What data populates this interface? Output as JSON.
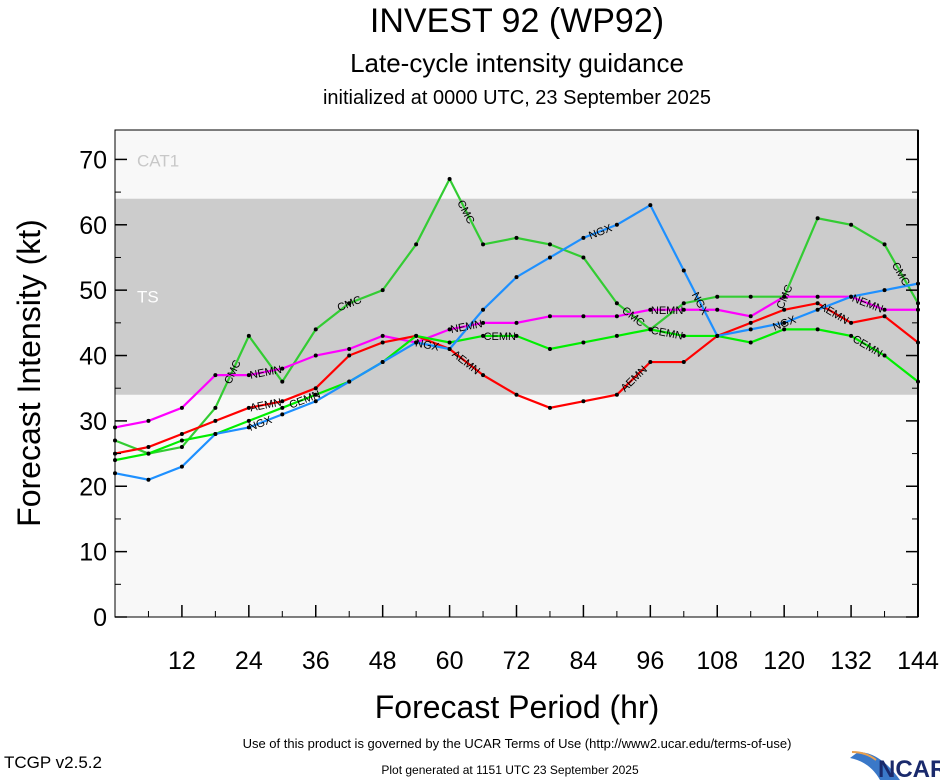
{
  "chart_data": {
    "type": "line",
    "title": "INVEST 92 (WP92)",
    "subtitle": "Late-cycle intensity guidance",
    "subtitle2": "initialized at 0000 UTC, 23 September 2025",
    "xlabel": "Forecast Period (hr)",
    "ylabel": "Forecast Intensity (kt)",
    "xlim": [
      0,
      144
    ],
    "ylim": [
      0,
      74.5
    ],
    "xticks": [
      12,
      24,
      36,
      48,
      60,
      72,
      84,
      96,
      108,
      120,
      132,
      144
    ],
    "yticks": [
      0,
      10,
      20,
      30,
      40,
      50,
      60,
      70
    ],
    "grid": false,
    "bands": [
      {
        "name": "TS",
        "from": 34,
        "to": 64,
        "color": "#cccccc",
        "label_color": "#ffffff"
      },
      {
        "name": "CAT1",
        "from": 64,
        "to": 83,
        "color": "#f8f8f8",
        "label_color": "#c8c8c8"
      }
    ],
    "background": "#f8f8f8",
    "x": [
      0,
      6,
      12,
      18,
      24,
      30,
      36,
      42,
      48,
      54,
      60,
      66,
      72,
      78,
      84,
      90,
      96,
      102,
      108,
      114,
      120,
      126,
      132,
      138,
      144
    ],
    "series": [
      {
        "name": "CMC",
        "color": "#33cc33",
        "values": [
          27,
          25,
          26,
          32,
          43,
          36,
          44,
          48,
          50,
          57,
          67,
          57,
          58,
          57,
          55,
          48,
          44,
          48,
          49,
          49,
          49,
          61,
          60,
          57,
          48
        ],
        "label_hours": [
          21,
          42,
          63,
          93,
          120,
          144
        ]
      },
      {
        "name": "NEMN",
        "color": "#ff00ff",
        "values": [
          29,
          30,
          32,
          37,
          37,
          38,
          40,
          41,
          43,
          42,
          44,
          45,
          45,
          46,
          46,
          46,
          47,
          47,
          47,
          46,
          49,
          49,
          49,
          47,
          47
        ],
        "label_hours": [
          27,
          63,
          99,
          135
        ]
      },
      {
        "name": "AEMN",
        "color": "#ff0000",
        "values": [
          25,
          26,
          28,
          30,
          32,
          33,
          35,
          40,
          42,
          43,
          41,
          37,
          34,
          32,
          33,
          34,
          39,
          39,
          43,
          45,
          47,
          48,
          45,
          46,
          42
        ],
        "label_hours": [
          27,
          63,
          93,
          129
        ]
      },
      {
        "name": "CEMN",
        "color": "#00ee00",
        "values": [
          24,
          25,
          27,
          28,
          30,
          32,
          34,
          36,
          39,
          43,
          42,
          43,
          43,
          41,
          42,
          43,
          44,
          43,
          43,
          42,
          44,
          44,
          43,
          40,
          36
        ],
        "label_hours": [
          30,
          63,
          99,
          135
        ]
      },
      {
        "name": "NGX",
        "color": "#1e90ff",
        "values": [
          22,
          21,
          23,
          28,
          29,
          31,
          33,
          36,
          39,
          42,
          41,
          47,
          52,
          55,
          58,
          60,
          63,
          53,
          43,
          44,
          45,
          47,
          49,
          50,
          51
        ],
        "label_hours": [
          30,
          60,
          87,
          105,
          138
        ]
      }
    ]
  },
  "footer": {
    "terms": "Use of this product is governed by the UCAR Terms of Use (http://www2.ucar.edu/terms-of-use)",
    "version": "TCGP v2.5.2",
    "generated": "Plot generated at 1151 UTC   23 September 2025",
    "logo": "NCAR"
  }
}
